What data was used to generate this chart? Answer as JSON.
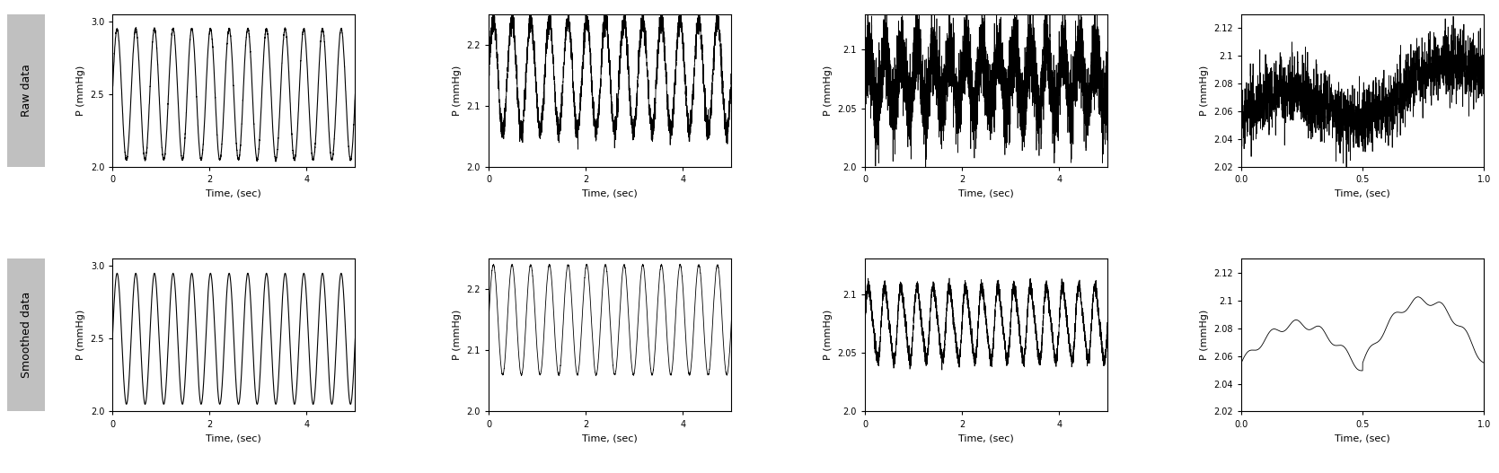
{
  "panels": [
    {
      "col": 0,
      "ylim": [
        2.0,
        3.05
      ],
      "yticks": [
        2.0,
        2.5,
        3.0
      ],
      "xlim": [
        0,
        5
      ],
      "xticks": [
        0,
        2,
        4
      ],
      "xlabel": "Time, (sec)",
      "ylabel": "P (mmHg)",
      "freq": 2.6,
      "amplitude": 0.45,
      "mean": 2.5,
      "noise_raw": 0.004,
      "duration": 5.0,
      "n_samples": 3000
    },
    {
      "col": 1,
      "ylim": [
        2.0,
        2.25
      ],
      "yticks": [
        2.0,
        2.1,
        2.2
      ],
      "xlim": [
        0,
        5
      ],
      "xticks": [
        0,
        2,
        4
      ],
      "xlabel": "Time, (sec)",
      "ylabel": "P (mmHg)",
      "freq": 2.6,
      "amplitude": 0.09,
      "mean": 2.15,
      "noise_raw": 0.01,
      "duration": 5.0,
      "n_samples": 3000
    },
    {
      "col": 2,
      "ylim": [
        2.0,
        2.13
      ],
      "yticks": [
        2.0,
        2.05,
        2.1
      ],
      "xlim": [
        0,
        5
      ],
      "xticks": [
        0,
        2,
        4
      ],
      "xlabel": "Time, (sec)",
      "ylabel": "P (mmHg)",
      "freq": 3.0,
      "amplitude": 0.025,
      "mean": 2.075,
      "noise_raw": 0.016,
      "duration": 5.0,
      "n_samples": 5000
    },
    {
      "col": 3,
      "ylim": [
        2.02,
        2.13
      ],
      "yticks": [
        2.02,
        2.04,
        2.06,
        2.08,
        2.1,
        2.12
      ],
      "xlim": [
        0,
        1
      ],
      "xticks": [
        0,
        0.5,
        1
      ],
      "xlabel": "Time, (sec)",
      "ylabel": "P (mmHg)",
      "freq": 8.0,
      "amplitude": 0.008,
      "mean": 2.065,
      "noise_raw": 0.012,
      "duration": 1.0,
      "n_samples": 2000,
      "trend_start": 2.055,
      "trend_end": 2.085
    }
  ],
  "row_labels": [
    "Raw data",
    "Smoothed data"
  ],
  "row_label_bg": "#c0c0c0",
  "line_color": "#000000",
  "tick_fontsize": 7,
  "label_fontsize": 8,
  "row_label_fontsize": 9,
  "bg_color": "#ffffff"
}
